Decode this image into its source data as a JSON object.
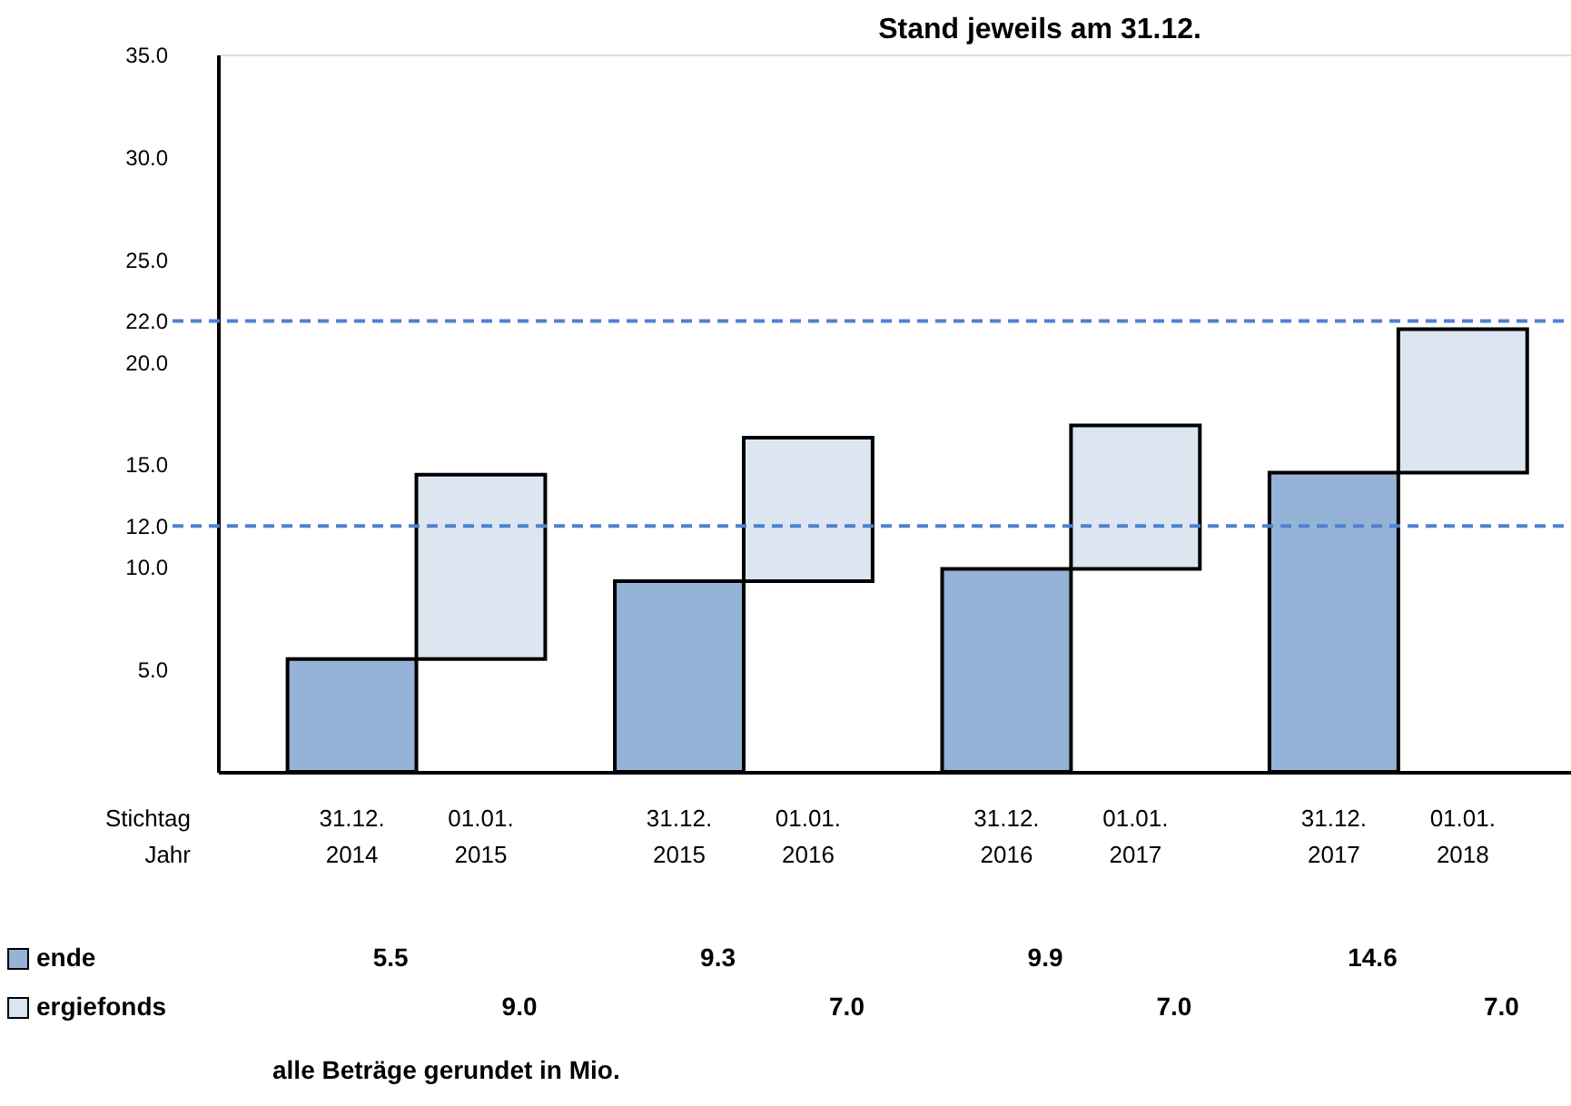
{
  "chart_data": {
    "type": "bar",
    "title": "Stand jeweils am 31.12.",
    "categories": [
      "31.12.\n2014",
      "01.01.\n2015",
      "31.12.\n2015",
      "01.01.\n2016",
      "31.12.\n2016",
      "01.01.\n2017",
      "31.12.\n2017",
      "01.01.\n2018"
    ],
    "xlabel": "Stichtag\nJahr",
    "series": [
      {
        "name": "ende",
        "color": "#95b3d7",
        "values": [
          5.5,
          null,
          9.3,
          null,
          9.9,
          null,
          14.6,
          null
        ],
        "value_labels": [
          "5.5",
          null,
          "9.3",
          null,
          "9.9",
          null,
          "14.6",
          null
        ]
      },
      {
        "name": "ergiefonds",
        "color": "#dce6f1",
        "values": [
          null,
          9.0,
          null,
          7.0,
          null,
          7.0,
          null,
          7.0
        ],
        "value_labels": [
          null,
          "9.0",
          null,
          "7.0",
          null,
          "7.0",
          null,
          "7.0"
        ],
        "base": [
          null,
          5.5,
          null,
          9.3,
          null,
          9.9,
          null,
          14.6
        ]
      }
    ],
    "ylim": [
      0,
      35
    ],
    "yticks": [
      {
        "value": 5,
        "label": "5.0"
      },
      {
        "value": 10,
        "label": "10.0"
      },
      {
        "value": 12,
        "label": "12.0"
      },
      {
        "value": 15,
        "label": "15.0"
      },
      {
        "value": 20,
        "label": "20.0"
      },
      {
        "value": 22,
        "label": "22.0"
      },
      {
        "value": 25,
        "label": "25.0"
      },
      {
        "value": 30,
        "label": "30.0"
      },
      {
        "value": 35,
        "label": "35.0"
      }
    ],
    "ref_lines": [
      {
        "axis": "y",
        "value": 22,
        "color": "#4f81d0",
        "line_style": "dashed"
      },
      {
        "axis": "y",
        "value": 12,
        "color": "#4f81d0",
        "line_style": "dashed"
      }
    ],
    "grid": false,
    "legend": "bottom left",
    "annotations": [
      "alle Beträge gerundet in Mio."
    ]
  }
}
